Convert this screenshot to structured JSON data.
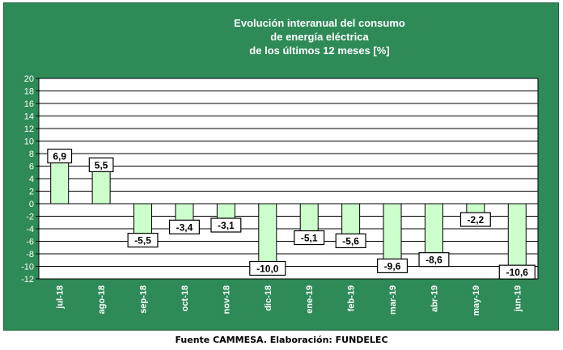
{
  "chart_data": {
    "type": "bar",
    "title_lines": [
      "Evolución interanual del consumo",
      "de energía eléctrica",
      "de los últimos 12 meses [%]"
    ],
    "categories": [
      "jul-18",
      "ago-18",
      "sep-18",
      "oct-18",
      "nov-18",
      "dic-18",
      "ene-19",
      "feb-19",
      "mar-19",
      "abr-19",
      "may-19",
      "jun-19"
    ],
    "values": [
      6.9,
      5.5,
      -5.5,
      -3.4,
      -3.1,
      -10.0,
      -5.1,
      -5.6,
      -9.6,
      -8.6,
      -2.2,
      -10.6
    ],
    "data_labels": [
      "6,9",
      "5,5",
      "-5,5",
      "-3,4",
      "-3,1",
      "-10,0",
      "-5,1",
      "-5,6",
      "-9,6",
      "-8,6",
      "-2,2",
      "-10,6"
    ],
    "ylim": [
      -12,
      20
    ],
    "ytick_step": 2,
    "grid": true,
    "colors": {
      "background": "#2e8b57",
      "plot_area": "#ffffff",
      "bar_fill": "#ccffcc",
      "bar_stroke": "#000000"
    }
  },
  "source": "Fuente CAMMESA. Elaboración: FUNDELEC"
}
